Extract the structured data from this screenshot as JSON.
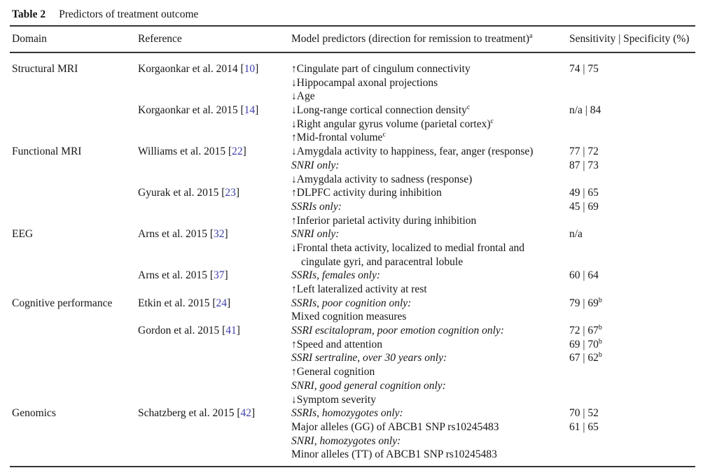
{
  "page": {
    "background": "#ffffff",
    "text_color": "#161616",
    "citation_color": "#3d3dab",
    "rule_color": "#343434"
  },
  "table": {
    "label": "Table 2",
    "caption": "Predictors of treatment outcome",
    "columns": [
      {
        "label": "Domain",
        "sup": ""
      },
      {
        "label": "Reference",
        "sup": ""
      },
      {
        "label": "Model predictors (direction for remission to treatment)",
        "sup": "a"
      },
      {
        "label": "Sensitivity | Specificity (%)",
        "sup": ""
      }
    ],
    "icons": {
      "up": "↑",
      "down": "↓"
    },
    "rows": [
      {
        "domain": "Structural MRI",
        "ref": "Korgaonkar et al. 2014",
        "cite": "10",
        "dir": "up",
        "text": "Cingulate part of cingulum connectivity",
        "sens": "74 | 75"
      },
      {
        "dir": "down",
        "text": "Hippocampal axonal projections"
      },
      {
        "dir": "down",
        "text": "Age"
      },
      {
        "ref": "Korgaonkar et al. 2015",
        "cite": "14",
        "dir": "down",
        "text": "Long-range cortical connection density",
        "sup": "c",
        "sens": "n/a | 84"
      },
      {
        "dir": "down",
        "text": "Right angular gyrus volume (parietal cortex)",
        "sup": "c"
      },
      {
        "dir": "up",
        "text": "Mid-frontal volume",
        "sup": "c"
      },
      {
        "domain": "Functional MRI",
        "ref": "Williams et al. 2015",
        "cite": "22",
        "dir": "down",
        "text": "Amygdala activity to happiness, fear, anger (response)",
        "sens": "77 | 72"
      },
      {
        "italic": true,
        "text": "SNRI only:",
        "sens": "87 | 73"
      },
      {
        "dir": "down",
        "text": "Amygdala activity to sadness (response)"
      },
      {
        "ref": "Gyurak et al. 2015",
        "cite": "23",
        "dir": "up",
        "text": "DLPFC activity during inhibition",
        "sens": "49 | 65"
      },
      {
        "italic": true,
        "text": "SSRIs only:",
        "sens": "45 | 69"
      },
      {
        "dir": "up",
        "text": "Inferior parietal activity during inhibition"
      },
      {
        "domain": "EEG",
        "ref": "Arns et al. 2015",
        "cite": "32",
        "italic": true,
        "text": "SNRI only:",
        "sens": "n/a"
      },
      {
        "dir": "down",
        "text": "Frontal theta activity, localized to medial frontal and"
      },
      {
        "indent": true,
        "text": "cingulate gyri, and paracentral lobule"
      },
      {
        "ref": "Arns et al. 2015",
        "cite": "37",
        "italic": true,
        "text": "SSRIs, females only:",
        "sens": "60 | 64"
      },
      {
        "dir": "up",
        "text": "Left lateralized activity at rest"
      },
      {
        "domain": "Cognitive performance",
        "ref": "Etkin et al. 2015",
        "cite": "24",
        "italic": true,
        "text": "SSRIs, poor cognition only:",
        "sens": "79 | 69",
        "sens_sup": "b"
      },
      {
        "text": "Mixed cognition measures"
      },
      {
        "ref": "Gordon et al. 2015",
        "cite": "41",
        "italic": true,
        "text": "SSRI escitalopram, poor emotion cognition only:",
        "sens": "72 | 67",
        "sens_sup": "b"
      },
      {
        "dir": "up",
        "text": "Speed and attention",
        "sens": "69 | 70",
        "sens_sup": "b"
      },
      {
        "italic": true,
        "text": "SSRI sertraline, over 30 years only:",
        "sens": "67 | 62",
        "sens_sup": "b"
      },
      {
        "dir": "up",
        "text": "General cognition"
      },
      {
        "italic": true,
        "text": "SNRI, good general cognition only:"
      },
      {
        "dir": "down",
        "text": "Symptom severity"
      },
      {
        "domain": "Genomics",
        "ref": "Schatzberg et al. 2015",
        "cite": "42",
        "italic": true,
        "text": "SSRIs, homozygotes only:",
        "sens": "70 | 52"
      },
      {
        "text": "Major alleles (GG) of ABCB1 SNP rs10245483",
        "sens": "61 | 65"
      },
      {
        "italic": true,
        "text": "SNRI, homozygotes only:"
      },
      {
        "text": "Minor alleles (TT) of ABCB1 SNP rs10245483"
      }
    ]
  }
}
